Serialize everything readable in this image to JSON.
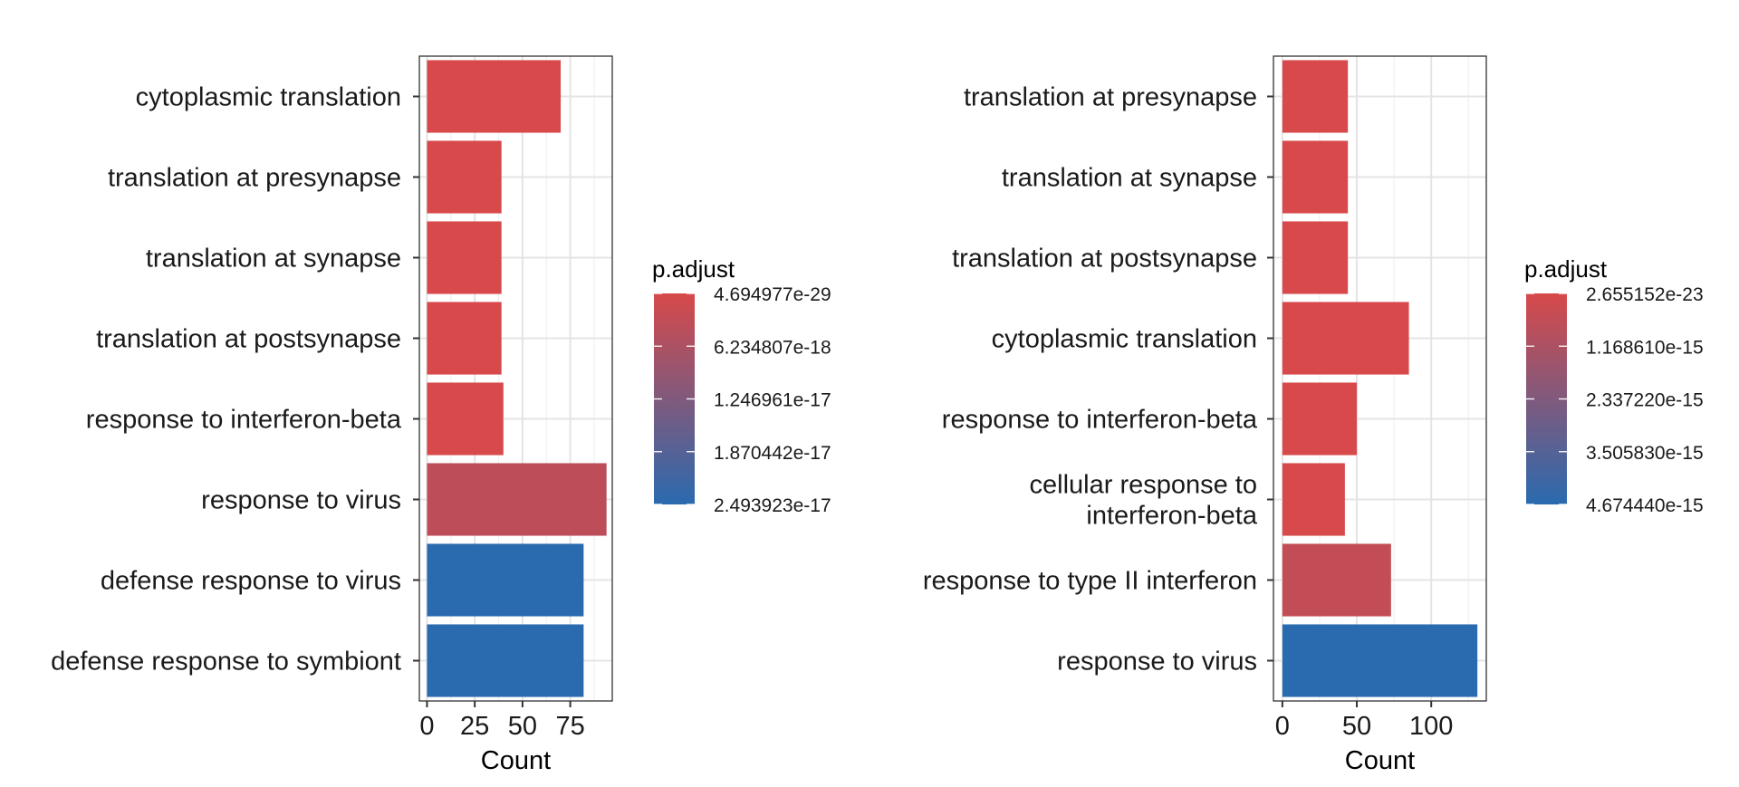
{
  "chart_data": [
    {
      "type": "bar",
      "orientation": "horizontal",
      "categories": [
        "cytoplasmic translation",
        "translation at presynapse",
        "translation at synapse",
        "translation at postsynapse",
        "response to interferon-beta",
        "response to virus",
        "defense response to virus",
        "defense response to symbiont"
      ],
      "values": [
        70,
        39,
        39,
        39,
        40,
        94,
        82,
        82
      ],
      "color_metric": [
        4.694977e-29,
        4.694977e-29,
        4.694977e-29,
        4.694977e-29,
        4.694977e-29,
        3.8e-18,
        2.493923e-17,
        2.493923e-17
      ],
      "xlabel": "Count",
      "ylabel": "",
      "xlim": [
        -4,
        97
      ],
      "xticks": [
        0,
        25,
        50,
        75
      ],
      "grid": true,
      "legend": {
        "title": "p.adjust",
        "labels": [
          "4.694977e-29",
          "6.234807e-18",
          "1.246961e-17",
          "1.870442e-17",
          "2.493923e-17"
        ],
        "color_low": "#d7494a",
        "color_high": "#2a6aaf",
        "placement": "right"
      }
    },
    {
      "type": "bar",
      "orientation": "horizontal",
      "categories": [
        "translation at presynapse",
        "translation at synapse",
        "translation at postsynapse",
        "cytoplasmic translation",
        "response to interferon-beta",
        "cellular response to\ninterferon-beta",
        "response to type II interferon",
        "response to virus"
      ],
      "values": [
        44,
        44,
        44,
        85,
        50,
        42,
        73,
        131
      ],
      "color_metric": [
        2.655152e-23,
        2.655152e-23,
        2.655152e-23,
        2.655152e-23,
        2.655152e-23,
        2.655152e-23,
        5.5e-16,
        4.67444e-15
      ],
      "xlabel": "Count",
      "ylabel": "",
      "xlim": [
        -6,
        137
      ],
      "xticks": [
        0,
        50,
        100
      ],
      "grid": true,
      "legend": {
        "title": "p.adjust",
        "labels": [
          "2.655152e-23",
          "1.168610e-15",
          "2.337220e-15",
          "3.505830e-15",
          "4.674440e-15"
        ],
        "color_low": "#d7494a",
        "color_high": "#2a6aaf",
        "placement": "right"
      }
    }
  ]
}
